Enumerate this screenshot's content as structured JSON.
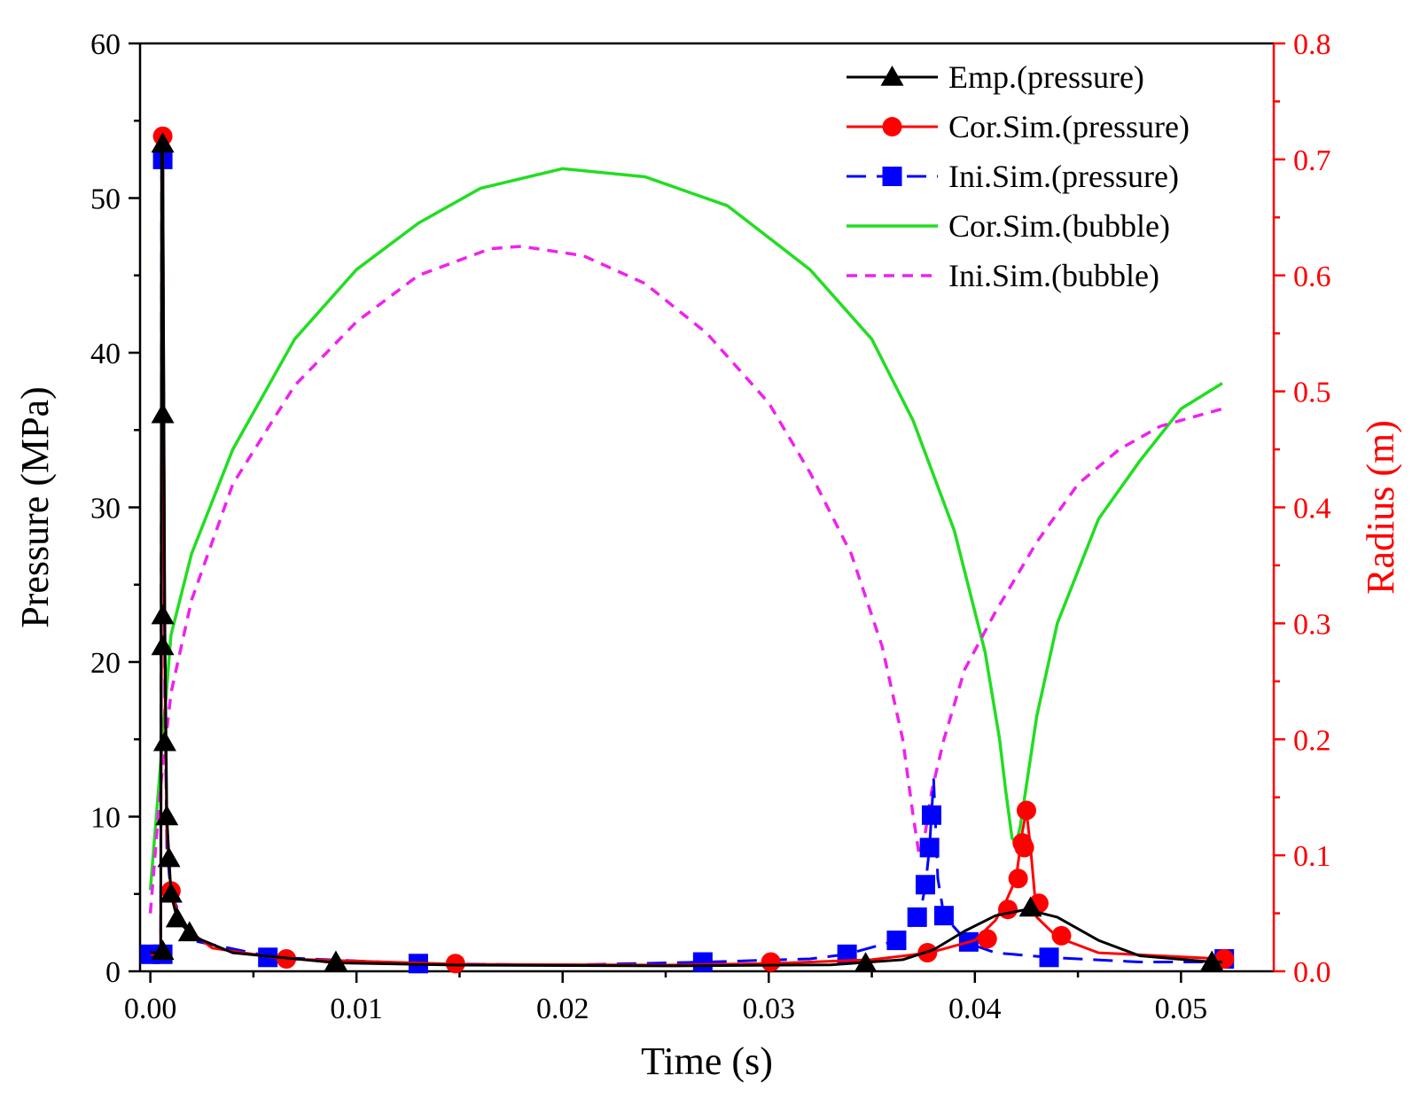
{
  "chart_data": {
    "type": "line",
    "title": "",
    "xlabel": "Time (s)",
    "ylabel_left": "Pressure (MPa)",
    "ylabel_right": "Radius (m)",
    "xlim": [
      -0.0005,
      0.0545
    ],
    "ylim_left": [
      0,
      60
    ],
    "ylim_right": [
      0,
      0.8
    ],
    "x_ticks": [
      0.0,
      0.01,
      0.02,
      0.03,
      0.04,
      0.05
    ],
    "x_tick_labels": [
      "0.00",
      "0.01",
      "0.02",
      "0.03",
      "0.04",
      "0.05"
    ],
    "y_left_ticks": [
      0,
      10,
      20,
      30,
      40,
      50,
      60
    ],
    "y_left_tick_labels": [
      "0",
      "10",
      "20",
      "30",
      "40",
      "50",
      "60"
    ],
    "y_right_ticks": [
      0.0,
      0.1,
      0.2,
      0.3,
      0.4,
      0.5,
      0.6,
      0.7,
      0.8
    ],
    "y_right_tick_labels": [
      "0.0",
      "0.1",
      "0.2",
      "0.3",
      "0.4",
      "0.5",
      "0.6",
      "0.7",
      "0.8"
    ],
    "grid": false,
    "legend_position": "top-right",
    "series": [
      {
        "name": "Emp.(pressure)",
        "axis": "left",
        "color": "#000000",
        "dash": "",
        "marker": "triangle",
        "line": [
          [
            0.0,
            1.2
          ],
          [
            0.0005,
            1.2
          ],
          [
            0.00055,
            54.0
          ],
          [
            0.0006,
            53.5
          ],
          [
            0.0007,
            23.0
          ],
          [
            0.0008,
            10.0
          ],
          [
            0.001,
            5.0
          ],
          [
            0.0013,
            3.4
          ],
          [
            0.002,
            2.3
          ],
          [
            0.004,
            1.2
          ],
          [
            0.009,
            0.55
          ],
          [
            0.015,
            0.4
          ],
          [
            0.025,
            0.35
          ],
          [
            0.033,
            0.42
          ],
          [
            0.0365,
            0.75
          ],
          [
            0.038,
            1.4
          ],
          [
            0.0395,
            2.6
          ],
          [
            0.041,
            3.6
          ],
          [
            0.0425,
            4.0
          ],
          [
            0.044,
            3.5
          ],
          [
            0.046,
            2.0
          ],
          [
            0.048,
            1.0
          ],
          [
            0.0515,
            0.6
          ],
          [
            0.052,
            0.6
          ]
        ],
        "markers": [
          [
            0.0006,
            1.3
          ],
          [
            0.0006,
            53.5
          ],
          [
            0.0006,
            36.0
          ],
          [
            0.0006,
            23.0
          ],
          [
            0.0006,
            21.0
          ],
          [
            0.0007,
            14.8
          ],
          [
            0.0008,
            10.0
          ],
          [
            0.0009,
            7.3
          ],
          [
            0.001,
            5.0
          ],
          [
            0.0013,
            3.4
          ],
          [
            0.0019,
            2.5
          ],
          [
            0.009,
            0.6
          ],
          [
            0.0347,
            0.5
          ],
          [
            0.0427,
            4.1
          ],
          [
            0.0515,
            0.6
          ]
        ]
      },
      {
        "name": "Cor.Sim.(pressure)",
        "axis": "left",
        "color": "#ff0000",
        "dash": "",
        "marker": "circle",
        "line": [
          [
            0.0,
            1.1
          ],
          [
            0.0005,
            1.1
          ],
          [
            0.0006,
            54.0
          ],
          [
            0.0007,
            20.0
          ],
          [
            0.0008,
            9.0
          ],
          [
            0.001,
            5.2
          ],
          [
            0.0015,
            3.0
          ],
          [
            0.003,
            1.5
          ],
          [
            0.0065,
            0.8
          ],
          [
            0.015,
            0.45
          ],
          [
            0.025,
            0.4
          ],
          [
            0.03,
            0.5
          ],
          [
            0.035,
            0.75
          ],
          [
            0.0378,
            1.2
          ],
          [
            0.04,
            2.0
          ],
          [
            0.041,
            3.3
          ],
          [
            0.0415,
            4.5
          ],
          [
            0.042,
            6.0
          ],
          [
            0.0423,
            9.0
          ],
          [
            0.0425,
            10.4
          ],
          [
            0.0427,
            8.0
          ],
          [
            0.043,
            3.5
          ],
          [
            0.044,
            2.2
          ],
          [
            0.046,
            1.2
          ],
          [
            0.052,
            0.8
          ]
        ],
        "markers": [
          [
            0.0006,
            54.0
          ],
          [
            0.001,
            5.2
          ],
          [
            0.0066,
            0.8
          ],
          [
            0.0148,
            0.5
          ],
          [
            0.0301,
            0.6
          ],
          [
            0.0377,
            1.2
          ],
          [
            0.0406,
            2.1
          ],
          [
            0.0416,
            4.0
          ],
          [
            0.0421,
            6.0
          ],
          [
            0.0423,
            8.3
          ],
          [
            0.0424,
            8.0
          ],
          [
            0.0425,
            10.4
          ],
          [
            0.0431,
            4.4
          ],
          [
            0.0442,
            2.3
          ],
          [
            0.0521,
            0.8
          ]
        ]
      },
      {
        "name": "Ini.Sim.(pressure)",
        "axis": "left",
        "color": "#0000ff",
        "dash": "22 12",
        "marker": "square",
        "line": [
          [
            0.0,
            1.1
          ],
          [
            0.0005,
            1.1
          ],
          [
            0.00055,
            52.5
          ],
          [
            0.0006,
            52.5
          ],
          [
            0.0007,
            18.0
          ],
          [
            0.0008,
            8.0
          ],
          [
            0.001,
            5.0
          ],
          [
            0.002,
            2.0
          ],
          [
            0.006,
            0.9
          ],
          [
            0.013,
            0.5
          ],
          [
            0.02,
            0.4
          ],
          [
            0.027,
            0.6
          ],
          [
            0.032,
            0.8
          ],
          [
            0.0338,
            1.1
          ],
          [
            0.0362,
            2.0
          ],
          [
            0.0373,
            3.5
          ],
          [
            0.0376,
            5.5
          ],
          [
            0.0378,
            8.0
          ],
          [
            0.038,
            12.4
          ],
          [
            0.0382,
            6.0
          ],
          [
            0.0385,
            3.6
          ],
          [
            0.0397,
            1.8
          ],
          [
            0.041,
            1.2
          ],
          [
            0.0436,
            0.9
          ],
          [
            0.048,
            0.6
          ],
          [
            0.052,
            0.6
          ]
        ],
        "markers": [
          [
            0.0,
            1.1
          ],
          [
            0.0006,
            1.1
          ],
          [
            0.0006,
            52.5
          ],
          [
            0.0057,
            0.9
          ],
          [
            0.013,
            0.5
          ],
          [
            0.0268,
            0.6
          ],
          [
            0.0338,
            1.1
          ],
          [
            0.0362,
            2.0
          ],
          [
            0.0372,
            3.5
          ],
          [
            0.0376,
            5.6
          ],
          [
            0.0378,
            8.0
          ],
          [
            0.0379,
            10.1
          ],
          [
            0.0385,
            3.6
          ],
          [
            0.0397,
            1.9
          ],
          [
            0.0436,
            0.9
          ],
          [
            0.0521,
            0.8
          ]
        ]
      },
      {
        "name": "Cor.Sim.(bubble)",
        "axis": "right",
        "color": "#22dd22",
        "dash": "",
        "marker": "none",
        "line": [
          [
            0.0,
            0.07
          ],
          [
            0.0005,
            0.18
          ],
          [
            0.001,
            0.29
          ],
          [
            0.002,
            0.36
          ],
          [
            0.004,
            0.45
          ],
          [
            0.007,
            0.545
          ],
          [
            0.01,
            0.605
          ],
          [
            0.013,
            0.645
          ],
          [
            0.016,
            0.675
          ],
          [
            0.02,
            0.692
          ],
          [
            0.024,
            0.685
          ],
          [
            0.028,
            0.66
          ],
          [
            0.032,
            0.605
          ],
          [
            0.035,
            0.545
          ],
          [
            0.037,
            0.475
          ],
          [
            0.039,
            0.38
          ],
          [
            0.0405,
            0.275
          ],
          [
            0.0412,
            0.2
          ],
          [
            0.0415,
            0.155
          ],
          [
            0.0418,
            0.115
          ],
          [
            0.042,
            0.11
          ],
          [
            0.0422,
            0.125
          ],
          [
            0.0425,
            0.16
          ],
          [
            0.043,
            0.22
          ],
          [
            0.044,
            0.3
          ],
          [
            0.046,
            0.39
          ],
          [
            0.048,
            0.44
          ],
          [
            0.05,
            0.485
          ],
          [
            0.052,
            0.507
          ]
        ]
      },
      {
        "name": "Ini.Sim.(bubble)",
        "axis": "right",
        "color": "#ee22ee",
        "dash": "12 9",
        "marker": "none",
        "line": [
          [
            0.0,
            0.05
          ],
          [
            0.0005,
            0.16
          ],
          [
            0.001,
            0.24
          ],
          [
            0.002,
            0.32
          ],
          [
            0.004,
            0.42
          ],
          [
            0.007,
            0.505
          ],
          [
            0.01,
            0.56
          ],
          [
            0.013,
            0.6
          ],
          [
            0.0165,
            0.623
          ],
          [
            0.018,
            0.625
          ],
          [
            0.021,
            0.617
          ],
          [
            0.024,
            0.593
          ],
          [
            0.027,
            0.55
          ],
          [
            0.03,
            0.49
          ],
          [
            0.032,
            0.43
          ],
          [
            0.034,
            0.36
          ],
          [
            0.0355,
            0.28
          ],
          [
            0.0365,
            0.2
          ],
          [
            0.037,
            0.135
          ],
          [
            0.0373,
            0.1
          ],
          [
            0.0376,
            0.12
          ],
          [
            0.0379,
            0.155
          ],
          [
            0.0385,
            0.2
          ],
          [
            0.0395,
            0.26
          ],
          [
            0.041,
            0.31
          ],
          [
            0.043,
            0.37
          ],
          [
            0.045,
            0.42
          ],
          [
            0.047,
            0.45
          ],
          [
            0.049,
            0.47
          ],
          [
            0.052,
            0.485
          ]
        ]
      }
    ]
  }
}
